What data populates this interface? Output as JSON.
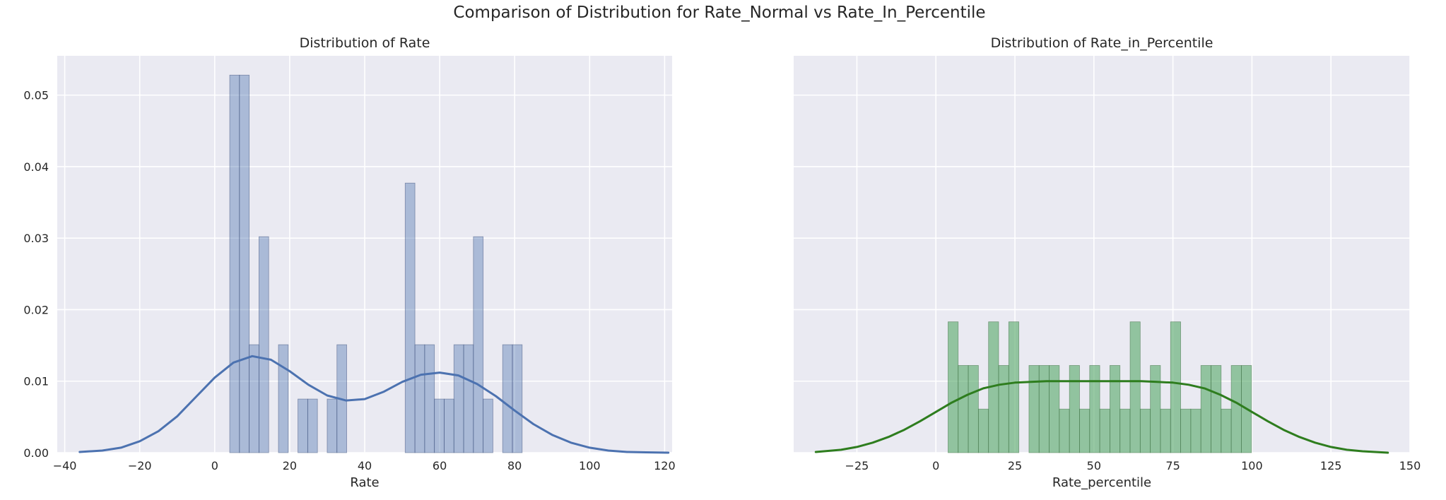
{
  "figure": {
    "title": "Comparison of Distribution for Rate_Normal vs Rate_In_Percentile"
  },
  "chart_data": [
    {
      "type": "bar",
      "subtype": "histogram with kde curve",
      "title": "Distribution of Rate",
      "xlabel": "Rate",
      "ylabel": "",
      "xlim": [
        -42,
        122
      ],
      "ylim": [
        0,
        0.0555
      ],
      "xticks": [
        -40,
        -20,
        0,
        20,
        40,
        60,
        80,
        100,
        120
      ],
      "yticks": [
        0.0,
        0.01,
        0.02,
        0.03,
        0.04,
        0.05
      ],
      "xtick_labels": [
        "−40",
        "−20",
        "0",
        "20",
        "40",
        "60",
        "80",
        "100",
        "120"
      ],
      "ytick_labels": [
        "0.00",
        "0.01",
        "0.02",
        "0.03",
        "0.04",
        "0.05"
      ],
      "grid": true,
      "bar_color": "#4c72b0",
      "line_color": "#4c72b0",
      "bins": [
        {
          "x0": 4.0,
          "x1": 6.6,
          "value": 0.0528
        },
        {
          "x0": 6.6,
          "x1": 9.2,
          "value": 0.0528
        },
        {
          "x0": 9.2,
          "x1": 11.8,
          "value": 0.0151
        },
        {
          "x0": 11.8,
          "x1": 14.4,
          "value": 0.0302
        },
        {
          "x0": 17.0,
          "x1": 19.6,
          "value": 0.0151
        },
        {
          "x0": 22.2,
          "x1": 24.8,
          "value": 0.0075
        },
        {
          "x0": 24.8,
          "x1": 27.4,
          "value": 0.0075
        },
        {
          "x0": 30.0,
          "x1": 32.6,
          "value": 0.0075
        },
        {
          "x0": 32.6,
          "x1": 35.2,
          "value": 0.0151
        },
        {
          "x0": 50.8,
          "x1": 53.4,
          "value": 0.0377
        },
        {
          "x0": 53.4,
          "x1": 56.0,
          "value": 0.0151
        },
        {
          "x0": 56.0,
          "x1": 58.6,
          "value": 0.0151
        },
        {
          "x0": 58.6,
          "x1": 61.2,
          "value": 0.0075
        },
        {
          "x0": 61.2,
          "x1": 63.8,
          "value": 0.0075
        },
        {
          "x0": 63.8,
          "x1": 66.4,
          "value": 0.0151
        },
        {
          "x0": 66.4,
          "x1": 69.0,
          "value": 0.0151
        },
        {
          "x0": 69.0,
          "x1": 71.6,
          "value": 0.0302
        },
        {
          "x0": 71.6,
          "x1": 74.2,
          "value": 0.0075
        },
        {
          "x0": 76.8,
          "x1": 79.4,
          "value": 0.0151
        },
        {
          "x0": 79.4,
          "x1": 82.0,
          "value": 0.0151
        }
      ],
      "kde": {
        "x": [
          -36,
          -30,
          -25,
          -20,
          -15,
          -10,
          -5,
          0,
          5,
          10,
          15,
          20,
          25,
          30,
          35,
          40,
          45,
          50,
          55,
          60,
          65,
          70,
          75,
          80,
          85,
          90,
          95,
          100,
          105,
          110,
          115,
          121
        ],
        "y": [
          0.0001,
          0.0003,
          0.0007,
          0.0016,
          0.003,
          0.0051,
          0.0078,
          0.0105,
          0.0126,
          0.0135,
          0.013,
          0.0114,
          0.0095,
          0.008,
          0.0073,
          0.0075,
          0.0085,
          0.0099,
          0.0109,
          0.0112,
          0.0108,
          0.0096,
          0.0079,
          0.0059,
          0.004,
          0.0025,
          0.0014,
          0.0007,
          0.0003,
          0.0001,
          5e-05,
          0.0
        ]
      }
    },
    {
      "type": "bar",
      "subtype": "histogram with kde curve",
      "title": "Distribution of Rate_in_Percentile",
      "xlabel": "Rate_percentile",
      "ylabel": "",
      "xlim": [
        -45,
        150
      ],
      "ylim": [
        0,
        0.0555
      ],
      "xticks": [
        -25,
        0,
        25,
        50,
        75,
        100,
        125,
        150
      ],
      "yticks": [
        0.0,
        0.01,
        0.02,
        0.03,
        0.04,
        0.05
      ],
      "xtick_labels": [
        "−25",
        "0",
        "25",
        "50",
        "75",
        "100",
        "125",
        "150"
      ],
      "grid": true,
      "bar_color": "#55a868",
      "line_color": "#2e7d1e",
      "bins": [
        {
          "x0": 3.85,
          "x1": 7.05,
          "value": 0.0183
        },
        {
          "x0": 7.05,
          "x1": 10.25,
          "value": 0.0122
        },
        {
          "x0": 10.25,
          "x1": 13.45,
          "value": 0.0122
        },
        {
          "x0": 13.45,
          "x1": 16.65,
          "value": 0.0061
        },
        {
          "x0": 16.65,
          "x1": 19.85,
          "value": 0.0183
        },
        {
          "x0": 19.85,
          "x1": 23.05,
          "value": 0.0122
        },
        {
          "x0": 23.05,
          "x1": 26.25,
          "value": 0.0183
        },
        {
          "x0": 29.45,
          "x1": 32.65,
          "value": 0.0122
        },
        {
          "x0": 32.65,
          "x1": 35.85,
          "value": 0.0122
        },
        {
          "x0": 35.85,
          "x1": 39.05,
          "value": 0.0122
        },
        {
          "x0": 39.05,
          "x1": 42.25,
          "value": 0.0061
        },
        {
          "x0": 42.25,
          "x1": 45.45,
          "value": 0.0122
        },
        {
          "x0": 45.45,
          "x1": 48.65,
          "value": 0.0061
        },
        {
          "x0": 48.65,
          "x1": 51.85,
          "value": 0.0122
        },
        {
          "x0": 51.85,
          "x1": 55.05,
          "value": 0.0061
        },
        {
          "x0": 55.05,
          "x1": 58.25,
          "value": 0.0122
        },
        {
          "x0": 58.25,
          "x1": 61.45,
          "value": 0.0061
        },
        {
          "x0": 61.45,
          "x1": 64.65,
          "value": 0.0183
        },
        {
          "x0": 64.65,
          "x1": 67.85,
          "value": 0.0061
        },
        {
          "x0": 67.85,
          "x1": 71.05,
          "value": 0.0122
        },
        {
          "x0": 71.05,
          "x1": 74.25,
          "value": 0.0061
        },
        {
          "x0": 74.25,
          "x1": 77.45,
          "value": 0.0183
        },
        {
          "x0": 77.45,
          "x1": 80.65,
          "value": 0.0061
        },
        {
          "x0": 80.65,
          "x1": 83.85,
          "value": 0.0061
        },
        {
          "x0": 83.85,
          "x1": 87.05,
          "value": 0.0122
        },
        {
          "x0": 87.05,
          "x1": 90.25,
          "value": 0.0122
        },
        {
          "x0": 90.25,
          "x1": 93.45,
          "value": 0.0061
        },
        {
          "x0": 93.45,
          "x1": 96.65,
          "value": 0.0122
        },
        {
          "x0": 96.65,
          "x1": 99.85,
          "value": 0.0122
        }
      ],
      "kde": {
        "x": [
          -38,
          -30,
          -25,
          -20,
          -15,
          -10,
          -5,
          0,
          5,
          10,
          15,
          20,
          25,
          30,
          35,
          40,
          45,
          50,
          55,
          60,
          65,
          70,
          75,
          80,
          85,
          90,
          95,
          100,
          105,
          110,
          115,
          120,
          125,
          130,
          135,
          143
        ],
        "y": [
          0.0001,
          0.0004,
          0.0008,
          0.0014,
          0.0022,
          0.0032,
          0.0044,
          0.0057,
          0.007,
          0.0081,
          0.009,
          0.0095,
          0.0098,
          0.0099,
          0.01,
          0.01,
          0.01,
          0.01,
          0.01,
          0.01,
          0.01,
          0.0099,
          0.0098,
          0.0095,
          0.009,
          0.0081,
          0.007,
          0.0057,
          0.0044,
          0.0032,
          0.0022,
          0.0014,
          0.0008,
          0.0004,
          0.0002,
          0.0
        ]
      }
    }
  ]
}
